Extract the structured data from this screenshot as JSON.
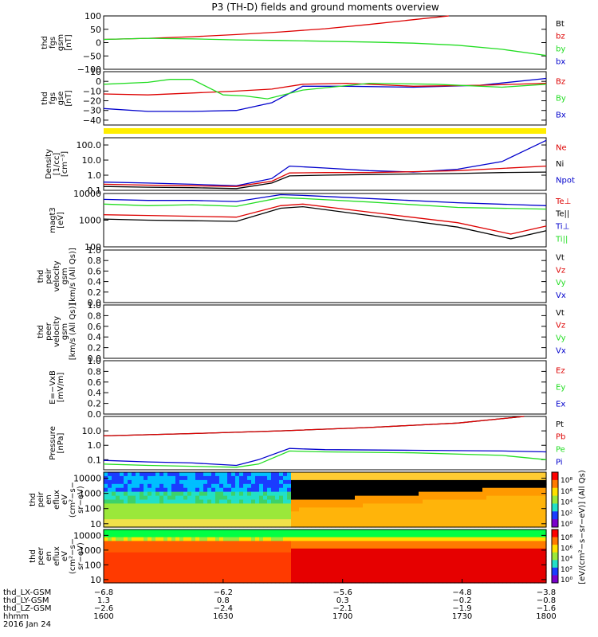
{
  "title": "P3 (TH-D) fields and ground moments overview",
  "colors": {
    "black": "#000000",
    "red": "#dd0000",
    "green": "#22dd22",
    "blue": "#0000cc",
    "yellow": "#ffee00"
  },
  "chart_data": [
    {
      "type": "line",
      "name": "fgs-gsm",
      "ylabel": [
        "thd",
        "fgs",
        "gsm",
        "[nT]"
      ],
      "ylim": [
        -100,
        100
      ],
      "yticks": [
        "100",
        "50",
        "0",
        "−50",
        "−100"
      ],
      "ytick_values": [
        100,
        50,
        0,
        -50,
        -100
      ],
      "legend": [
        {
          "label": "Bt",
          "color": "black"
        },
        {
          "label": "bz",
          "color": "red"
        },
        {
          "label": "by",
          "color": "green"
        },
        {
          "label": "bx",
          "color": "blue"
        }
      ],
      "series": [
        {
          "name": "bz",
          "color": "red",
          "x": [
            0,
            0.1,
            0.2,
            0.3,
            0.4,
            0.5,
            0.6,
            0.7,
            0.78
          ],
          "values": [
            12,
            16,
            22,
            30,
            40,
            52,
            68,
            86,
            100
          ]
        },
        {
          "name": "by",
          "color": "green",
          "x": [
            0,
            0.1,
            0.2,
            0.3,
            0.4,
            0.5,
            0.6,
            0.7,
            0.8,
            0.9,
            1.0
          ],
          "values": [
            12,
            16,
            14,
            10,
            8,
            5,
            2,
            -2,
            -10,
            -25,
            -48
          ]
        }
      ]
    },
    {
      "type": "line",
      "name": "fgs-gse",
      "ylabel": [
        "thd",
        "fgs",
        "gse",
        "[nT]"
      ],
      "ylim": [
        -45,
        10
      ],
      "yticks": [
        "10",
        "0",
        "−10",
        "−20",
        "−30",
        "−40"
      ],
      "ytick_values": [
        10,
        0,
        -10,
        -20,
        -30,
        -40
      ],
      "legend": [
        {
          "label": "Bz",
          "color": "red"
        },
        {
          "label": "By",
          "color": "green"
        },
        {
          "label": "Bx",
          "color": "blue"
        }
      ],
      "series": [
        {
          "name": "Bx",
          "color": "blue",
          "x": [
            0,
            0.1,
            0.2,
            0.3,
            0.38,
            0.45,
            0.55,
            0.7,
            0.85,
            1.0
          ],
          "values": [
            -28,
            -31,
            -31,
            -30,
            -22,
            -5,
            -5,
            -6,
            -4,
            3
          ]
        },
        {
          "name": "Bz",
          "color": "red",
          "x": [
            0,
            0.1,
            0.2,
            0.3,
            0.38,
            0.45,
            0.55,
            0.7,
            0.85,
            1.0
          ],
          "values": [
            -13,
            -14,
            -12,
            -10,
            -8,
            -3,
            -2,
            -5,
            -4,
            -2
          ]
        },
        {
          "name": "By",
          "color": "green",
          "x": [
            0,
            0.1,
            0.15,
            0.2,
            0.27,
            0.32,
            0.37,
            0.45,
            0.6,
            0.75,
            0.9,
            1.0
          ],
          "values": [
            -3,
            -1,
            2,
            2,
            -14,
            -15,
            -18,
            -9,
            -2,
            -3,
            -6,
            -3
          ]
        }
      ]
    },
    {
      "type": "line",
      "name": "density",
      "log": true,
      "ylabel": [
        "Density",
        "[1/cc]",
        "[cm⁻³]"
      ],
      "ylim": [
        0.1,
        300
      ],
      "yticks": [
        "100.0",
        "10.0",
        "1.0",
        "0.1"
      ],
      "ytick_values": [
        100,
        10,
        1,
        0.1
      ],
      "legend": [
        {
          "label": "Ne",
          "color": "red"
        },
        {
          "label": "Ni",
          "color": "black"
        },
        {
          "label": "Npot",
          "color": "blue"
        }
      ],
      "series": [
        {
          "name": "Npot",
          "color": "blue",
          "x": [
            0,
            0.1,
            0.2,
            0.3,
            0.38,
            0.42,
            0.5,
            0.6,
            0.7,
            0.8,
            0.9,
            0.95,
            1.0
          ],
          "values": [
            0.35,
            0.3,
            0.25,
            0.2,
            0.6,
            4,
            3,
            2,
            1.6,
            2.5,
            8,
            40,
            200
          ]
        },
        {
          "name": "Ne",
          "color": "red",
          "x": [
            0,
            0.1,
            0.2,
            0.3,
            0.38,
            0.42,
            0.5,
            0.6,
            0.7,
            0.8,
            0.9,
            1.0
          ],
          "values": [
            0.25,
            0.22,
            0.2,
            0.18,
            0.4,
            1.4,
            1.5,
            1.5,
            1.7,
            2.0,
            2.8,
            4
          ]
        },
        {
          "name": "Ni",
          "color": "black",
          "x": [
            0,
            0.1,
            0.2,
            0.3,
            0.38,
            0.42,
            0.5,
            0.6,
            0.7,
            0.8,
            0.9,
            1.0
          ],
          "values": [
            0.18,
            0.16,
            0.15,
            0.13,
            0.3,
            0.9,
            1.0,
            1.1,
            1.2,
            1.3,
            1.5,
            1.6
          ]
        }
      ]
    },
    {
      "type": "line",
      "name": "temperature",
      "log": true,
      "ylabel": [
        "magt3",
        "[eV]"
      ],
      "ylim": [
        100,
        10000
      ],
      "yticks": [
        "10000",
        "1000",
        "100"
      ],
      "ytick_values": [
        10000,
        1000,
        100
      ],
      "legend": [
        {
          "label": "Te⊥",
          "color": "red"
        },
        {
          "label": "Te||",
          "color": "black"
        },
        {
          "label": "Ti⊥",
          "color": "blue"
        },
        {
          "label": "Ti||",
          "color": "green"
        }
      ],
      "series": [
        {
          "name": "Ti_perp",
          "color": "blue",
          "x": [
            0,
            0.1,
            0.2,
            0.3,
            0.4,
            0.45,
            0.6,
            0.8,
            1.0
          ],
          "values": [
            6000,
            5500,
            5500,
            5000,
            9000,
            8500,
            6500,
            4500,
            3500
          ]
        },
        {
          "name": "Ti_par",
          "color": "green",
          "x": [
            0,
            0.1,
            0.2,
            0.3,
            0.4,
            0.45,
            0.6,
            0.8,
            1.0
          ],
          "values": [
            4000,
            3500,
            3800,
            3300,
            7000,
            6500,
            4800,
            3000,
            2600
          ]
        },
        {
          "name": "Te_perp",
          "color": "red",
          "x": [
            0,
            0.1,
            0.2,
            0.3,
            0.4,
            0.45,
            0.6,
            0.8,
            0.92,
            1.0
          ],
          "values": [
            1600,
            1500,
            1400,
            1300,
            3500,
            4000,
            2000,
            800,
            300,
            600
          ]
        },
        {
          "name": "Te_par",
          "color": "black",
          "x": [
            0,
            0.1,
            0.2,
            0.3,
            0.4,
            0.45,
            0.6,
            0.8,
            0.92,
            1.0
          ],
          "values": [
            1100,
            1000,
            950,
            900,
            2800,
            3200,
            1500,
            550,
            200,
            400
          ]
        }
      ]
    },
    {
      "type": "line",
      "name": "peir-velocity",
      "empty": true,
      "ylabel": [
        "thd",
        "peir",
        "velocity",
        "gsm",
        "[km/s (All Qs)]"
      ],
      "ylim": [
        0,
        1
      ],
      "yticks": [
        "1.0",
        "0.8",
        "0.6",
        "0.4",
        "0.2",
        "0.0"
      ],
      "ytick_values": [
        1,
        0.8,
        0.6,
        0.4,
        0.2,
        0
      ],
      "legend": [
        {
          "label": "Vt",
          "color": "black"
        },
        {
          "label": "Vz",
          "color": "red"
        },
        {
          "label": "Vy",
          "color": "green"
        },
        {
          "label": "Vx",
          "color": "blue"
        }
      ],
      "series": []
    },
    {
      "type": "line",
      "name": "peer-velocity",
      "empty": true,
      "ylabel": [
        "thd",
        "peer",
        "velocity",
        "gsm",
        "[km/s (All Qs)]"
      ],
      "ylim": [
        0,
        1
      ],
      "yticks": [
        "1.0",
        "0.8",
        "0.6",
        "0.4",
        "0.2",
        "0.0"
      ],
      "ytick_values": [
        1,
        0.8,
        0.6,
        0.4,
        0.2,
        0
      ],
      "legend": [
        {
          "label": "Vt",
          "color": "black"
        },
        {
          "label": "Vz",
          "color": "red"
        },
        {
          "label": "Vy",
          "color": "green"
        },
        {
          "label": "Vx",
          "color": "blue"
        }
      ],
      "series": []
    },
    {
      "type": "line",
      "name": "e-field",
      "empty": true,
      "ylabel": [
        "E=−VxB",
        "[mV/m]"
      ],
      "ylim": [
        0,
        1
      ],
      "yticks": [
        "1.0",
        "0.8",
        "0.6",
        "0.4",
        "0.2",
        "0.0"
      ],
      "ytick_values": [
        1,
        0.8,
        0.6,
        0.4,
        0.2,
        0
      ],
      "legend": [
        {
          "label": "Ez",
          "color": "red"
        },
        {
          "label": "Ey",
          "color": "green"
        },
        {
          "label": "Ex",
          "color": "blue"
        }
      ],
      "series": []
    },
    {
      "type": "line",
      "name": "pressure",
      "log": true,
      "ylabel": [
        "Pressure",
        "[nPa]"
      ],
      "ylim": [
        0.02,
        100
      ],
      "yticks": [
        "10.0",
        "1.0",
        "0.1"
      ],
      "ytick_values": [
        10,
        1,
        0.1
      ],
      "legend": [
        {
          "label": "Pt",
          "color": "black"
        },
        {
          "label": "Pb",
          "color": "red"
        },
        {
          "label": "Pe",
          "color": "green"
        },
        {
          "label": "Pi",
          "color": "blue"
        }
      ],
      "series": [
        {
          "name": "Pt",
          "color": "black",
          "x": [
            0,
            0.2,
            0.4,
            0.6,
            0.8,
            0.95
          ],
          "values": [
            4.5,
            6.5,
            10,
            17,
            35,
            100
          ]
        },
        {
          "name": "Pb",
          "color": "red",
          "x": [
            0,
            0.2,
            0.4,
            0.6,
            0.8,
            0.95
          ],
          "values": [
            4.5,
            6.5,
            10,
            17,
            35,
            100
          ]
        },
        {
          "name": "Pi",
          "color": "blue",
          "x": [
            0,
            0.1,
            0.2,
            0.3,
            0.35,
            0.42,
            0.5,
            0.7,
            0.9,
            1.0
          ],
          "values": [
            0.09,
            0.07,
            0.06,
            0.04,
            0.1,
            0.6,
            0.5,
            0.45,
            0.4,
            0.35
          ]
        },
        {
          "name": "Pe",
          "color": "green",
          "x": [
            0,
            0.1,
            0.2,
            0.3,
            0.35,
            0.42,
            0.5,
            0.7,
            0.9,
            1.0
          ],
          "values": [
            0.05,
            0.04,
            0.035,
            0.03,
            0.05,
            0.4,
            0.35,
            0.3,
            0.2,
            0.1
          ]
        }
      ]
    },
    {
      "type": "heatmap",
      "name": "peir-en-eflux",
      "ylabel": [
        "thd",
        "peir",
        "en",
        "eflux",
        "eV",
        "(cm²−s−",
        "sr−eV)"
      ],
      "yticks": [
        "10000",
        "1000",
        "100",
        "10"
      ],
      "ytick_values": [
        10000,
        1000,
        100,
        10
      ]
    },
    {
      "type": "heatmap",
      "name": "peer-en-eflux",
      "ylabel": [
        "thd",
        "peer",
        "en",
        "eflux",
        "eV",
        "(cm²−s−",
        "sr−eV)"
      ],
      "yticks": [
        "10000",
        "1000",
        "100",
        "10"
      ],
      "ytick_values": [
        10000,
        1000,
        100,
        10
      ]
    }
  ],
  "colorbar": {
    "label": "[eV/(cm²−s−sr−eV)] (All Qs)",
    "ticks": [
      "10⁸",
      "10⁶",
      "10⁴",
      "10²",
      "10⁰",
      "10⁸",
      "10⁶",
      "10⁴",
      "10²",
      "10⁰"
    ]
  },
  "x_axis": {
    "rows": [
      {
        "label": "thd_LX-GSM",
        "values": [
          "−6.8",
          "−6.2",
          "−5.6",
          "−4.8",
          "−3.8"
        ]
      },
      {
        "label": "thd_LY-GSM",
        "values": [
          "1.3",
          "0.8",
          "0.3",
          "−0.2",
          "−0.8"
        ]
      },
      {
        "label": "thd_LZ-GSM",
        "values": [
          "−2.6",
          "−2.4",
          "−2.1",
          "−1.9",
          "−1.6"
        ]
      },
      {
        "label": "hhmm",
        "values": [
          "1600",
          "1630",
          "1700",
          "1730",
          "1800"
        ]
      }
    ],
    "date": "2016 Jan 24"
  }
}
